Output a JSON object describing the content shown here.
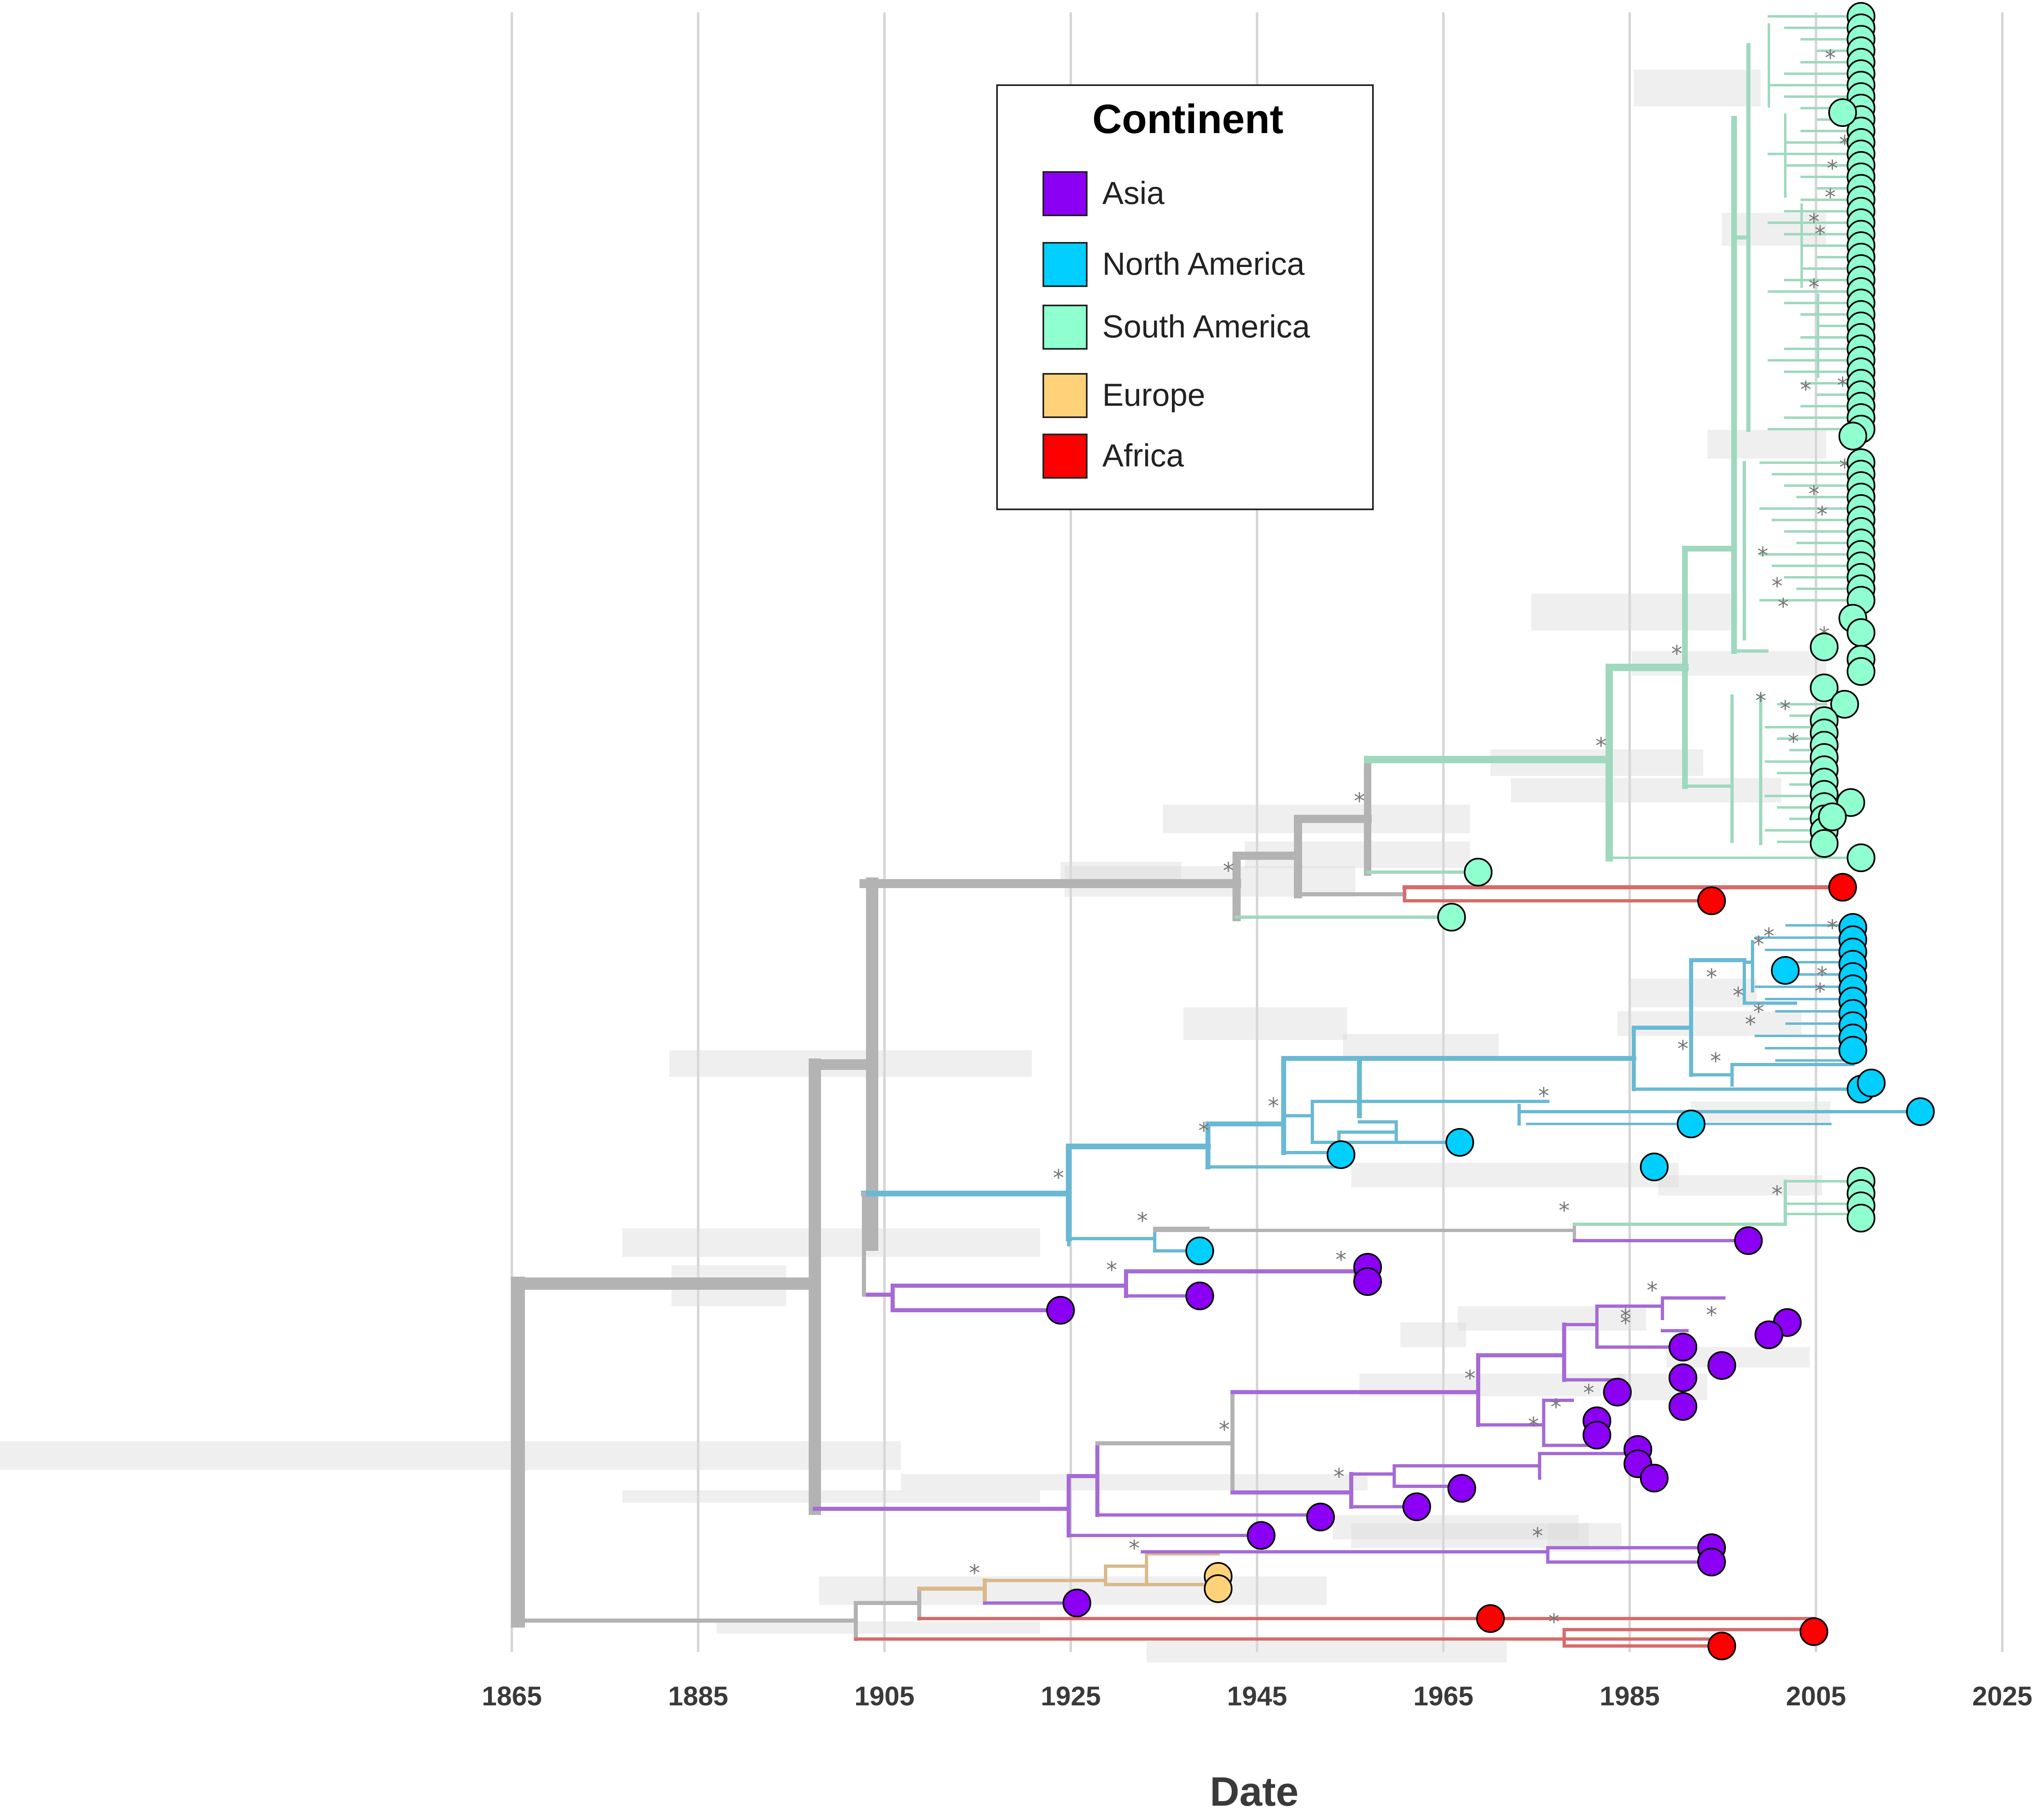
{
  "figure": {
    "axis": {
      "title": "Date",
      "min": 1865,
      "max": 2025,
      "ticks": [
        1865,
        1885,
        1905,
        1925,
        1945,
        1965,
        1985,
        2005,
        2025
      ],
      "gridlines": true
    },
    "legend": {
      "title": "Continent",
      "placement": "top-center",
      "items": [
        {
          "label": "Asia",
          "color": "#8b00f5"
        },
        {
          "label": "North America",
          "color": "#00cfff"
        },
        {
          "label": "South America",
          "color": "#8fffd0"
        },
        {
          "label": "Europe",
          "color": "#ffd27a"
        },
        {
          "label": "Africa",
          "color": "#ff0000"
        }
      ]
    },
    "support_marker": "*",
    "branch_colors": {
      "root": "#b3b3b3",
      "Asia": "#a66ad6",
      "North America": "#6ab9d4",
      "South America": "#9fd9bd",
      "Europe": "#d9b98a",
      "Africa": "#d96a6a"
    }
  }
}
